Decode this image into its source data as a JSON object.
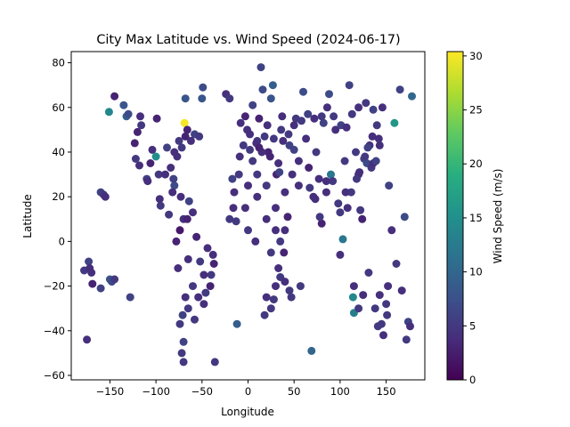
{
  "chart_data": {
    "type": "scatter",
    "title": "City Max Latitude vs. Wind Speed (2024-06-17)",
    "xlabel": "Longitude",
    "ylabel": "Latitude",
    "xlim": [
      -192,
      192
    ],
    "ylim": [
      -62,
      85
    ],
    "xticks": [
      -150,
      -100,
      -50,
      0,
      50,
      100,
      150
    ],
    "yticks": [
      -60,
      -40,
      -20,
      0,
      20,
      40,
      60,
      80
    ],
    "colorbar": {
      "label": "Wind Speed (m/s)",
      "colormap": "viridis",
      "range": [
        0,
        30.4
      ],
      "ticks": [
        0,
        5,
        10,
        15,
        20,
        25,
        30
      ]
    },
    "grid": false,
    "points": [
      [
        -175,
        -44,
        4
      ],
      [
        -178,
        -13,
        5
      ],
      [
        -173,
        -9,
        6
      ],
      [
        -172,
        -12,
        4
      ],
      [
        -169,
        -19,
        3
      ],
      [
        -160,
        22,
        6
      ],
      [
        -157,
        21,
        5
      ],
      [
        -155,
        20,
        4
      ],
      [
        -150,
        -17,
        8
      ],
      [
        -148,
        -18,
        7
      ],
      [
        -160,
        -21,
        6
      ],
      [
        -151,
        58,
        14
      ],
      [
        -145,
        65,
        3
      ],
      [
        -135,
        61,
        8
      ],
      [
        -132,
        56,
        9
      ],
      [
        -130,
        57,
        7
      ],
      [
        -128,
        -25,
        6
      ],
      [
        -120,
        49,
        3
      ],
      [
        -118,
        34,
        4
      ],
      [
        -122,
        37,
        5
      ],
      [
        -117,
        56,
        4
      ],
      [
        -123,
        44,
        3
      ],
      [
        -116,
        52,
        5
      ],
      [
        -110,
        28,
        6
      ],
      [
        -106,
        35,
        3
      ],
      [
        -104,
        41,
        4
      ],
      [
        -100,
        38,
        15
      ],
      [
        -97,
        30,
        5
      ],
      [
        -96,
        19,
        4
      ],
      [
        -99,
        55,
        3
      ],
      [
        -90,
        30,
        4
      ],
      [
        -88,
        42,
        6
      ],
      [
        -86,
        12,
        5
      ],
      [
        -84,
        33,
        4
      ],
      [
        -80,
        25,
        7
      ],
      [
        -80,
        40,
        4
      ],
      [
        -78,
        0,
        3
      ],
      [
        -76,
        -12,
        4
      ],
      [
        -75,
        45,
        5
      ],
      [
        -73,
        20,
        4
      ],
      [
        -74,
        5,
        2
      ],
      [
        -71,
        -33,
        6
      ],
      [
        -70,
        -54,
        5
      ],
      [
        -70,
        10,
        4
      ],
      [
        -69,
        53,
        30
      ],
      [
        -66,
        50,
        3
      ],
      [
        -68,
        64,
        8
      ],
      [
        -65,
        -8,
        4
      ],
      [
        -65,
        -30,
        5
      ],
      [
        -64,
        18,
        6
      ],
      [
        -60,
        13,
        4
      ],
      [
        -58,
        -35,
        5
      ],
      [
        -56,
        2,
        3
      ],
      [
        -54,
        -25,
        4
      ],
      [
        -52,
        -9,
        5
      ],
      [
        -50,
        64,
        8
      ],
      [
        -49,
        69,
        7
      ],
      [
        -48,
        -15,
        4
      ],
      [
        -46,
        -23,
        5
      ],
      [
        -44,
        -3,
        4
      ],
      [
        -41,
        -20,
        3
      ],
      [
        -38,
        -6,
        4
      ],
      [
        -36,
        -54,
        5
      ],
      [
        -37,
        -10,
        3
      ],
      [
        -12,
        -37,
        9
      ],
      [
        -24,
        66,
        4
      ],
      [
        -20,
        64,
        5
      ],
      [
        -17,
        28,
        6
      ],
      [
        -16,
        15,
        4
      ],
      [
        -13,
        9,
        5
      ],
      [
        -8,
        53,
        4
      ],
      [
        -5,
        43,
        5
      ],
      [
        -3,
        56,
        3
      ],
      [
        -1,
        50,
        4
      ],
      [
        0,
        5,
        5
      ],
      [
        2,
        48,
        4
      ],
      [
        5,
        61,
        6
      ],
      [
        8,
        0,
        4
      ],
      [
        10,
        45,
        5
      ],
      [
        12,
        55,
        3
      ],
      [
        14,
        78,
        6
      ],
      [
        16,
        68,
        7
      ],
      [
        18,
        -33,
        5
      ],
      [
        20,
        10,
        4
      ],
      [
        22,
        40,
        3
      ],
      [
        25,
        64,
        8
      ],
      [
        27,
        70,
        9
      ],
      [
        28,
        -26,
        5
      ],
      [
        30,
        15,
        4
      ],
      [
        31,
        30,
        3
      ],
      [
        33,
        -12,
        4
      ],
      [
        36,
        50,
        5
      ],
      [
        37,
        56,
        4
      ],
      [
        39,
        -5,
        3
      ],
      [
        40,
        22,
        4
      ],
      [
        43,
        11,
        3
      ],
      [
        45,
        -22,
        5
      ],
      [
        48,
        30,
        4
      ],
      [
        50,
        41,
        6
      ],
      [
        52,
        55,
        5
      ],
      [
        55,
        25,
        4
      ],
      [
        57,
        -20,
        5
      ],
      [
        60,
        67,
        7
      ],
      [
        63,
        46,
        4
      ],
      [
        66,
        33,
        3
      ],
      [
        69,
        -49,
        10
      ],
      [
        71,
        20,
        4
      ],
      [
        74,
        40,
        5
      ],
      [
        77,
        28,
        4
      ],
      [
        80,
        8,
        3
      ],
      [
        82,
        53,
        6
      ],
      [
        85,
        22,
        4
      ],
      [
        88,
        66,
        7
      ],
      [
        90,
        30,
        12
      ],
      [
        92,
        27,
        5
      ],
      [
        95,
        50,
        4
      ],
      [
        98,
        17,
        5
      ],
      [
        100,
        -6,
        4
      ],
      [
        103,
        1,
        12
      ],
      [
        105,
        36,
        5
      ],
      [
        108,
        15,
        4
      ],
      [
        110,
        70,
        6
      ],
      [
        112,
        22,
        5
      ],
      [
        114,
        -25,
        14
      ],
      [
        115,
        -32,
        13
      ],
      [
        117,
        40,
        5
      ],
      [
        120,
        30,
        4
      ],
      [
        122,
        14,
        5
      ],
      [
        124,
        10,
        3
      ],
      [
        126,
        37,
        6
      ],
      [
        129,
        35,
        7
      ],
      [
        131,
        -14,
        5
      ],
      [
        132,
        43,
        4
      ],
      [
        134,
        33,
        5
      ],
      [
        136,
        35,
        4
      ],
      [
        139,
        36,
        6
      ],
      [
        141,
        -38,
        5
      ],
      [
        143,
        43,
        4
      ],
      [
        145,
        -37,
        5
      ],
      [
        147,
        -42,
        4
      ],
      [
        151,
        -33,
        5
      ],
      [
        153,
        25,
        6
      ],
      [
        156,
        5,
        4
      ],
      [
        159,
        53,
        16
      ],
      [
        161,
        -10,
        5
      ],
      [
        165,
        68,
        6
      ],
      [
        167,
        -22,
        4
      ],
      [
        170,
        11,
        7
      ],
      [
        172,
        -44,
        5
      ],
      [
        174,
        -36,
        6
      ],
      [
        176,
        -38,
        4
      ],
      [
        178,
        65,
        10
      ],
      [
        -170,
        -14,
        4
      ],
      [
        -145,
        -17,
        5
      ],
      [
        -109,
        27,
        4
      ],
      [
        -95,
        16,
        5
      ],
      [
        -81,
        28,
        6
      ],
      [
        -77,
        38,
        4
      ],
      [
        -72,
        42,
        5
      ],
      [
        -68,
        47,
        3
      ],
      [
        -62,
        45,
        4
      ],
      [
        -58,
        48,
        6
      ],
      [
        -53,
        47,
        5
      ],
      [
        -82,
        22,
        4
      ],
      [
        -66,
        10,
        3
      ],
      [
        -3,
        15,
        4
      ],
      [
        5,
        36,
        5
      ],
      [
        15,
        40,
        4
      ],
      [
        24,
        38,
        3
      ],
      [
        33,
        35,
        4
      ],
      [
        45,
        43,
        6
      ],
      [
        55,
        36,
        4
      ],
      [
        67,
        24,
        5
      ],
      [
        73,
        19,
        4
      ],
      [
        78,
        11,
        5
      ],
      [
        85,
        27,
        4
      ],
      [
        100,
        13,
        5
      ],
      [
        106,
        22,
        4
      ],
      [
        118,
        28,
        5
      ],
      [
        121,
        31,
        4
      ],
      [
        127,
        38,
        5
      ],
      [
        130,
        42,
        6
      ],
      [
        135,
        47,
        4
      ],
      [
        140,
        52,
        5
      ],
      [
        146,
        60,
        4
      ],
      [
        -9,
        38,
        4
      ],
      [
        2,
        41,
        5
      ],
      [
        9,
        44,
        4
      ],
      [
        12,
        42,
        3
      ],
      [
        18,
        47,
        5
      ],
      [
        21,
        52,
        4
      ],
      [
        28,
        46,
        5
      ],
      [
        34,
        31,
        6
      ],
      [
        38,
        45,
        4
      ],
      [
        44,
        48,
        5
      ],
      [
        50,
        52,
        4
      ],
      [
        58,
        54,
        5
      ],
      [
        65,
        57,
        6
      ],
      [
        72,
        55,
        4
      ],
      [
        80,
        56,
        5
      ],
      [
        86,
        60,
        4
      ],
      [
        93,
        56,
        5
      ],
      [
        101,
        52,
        6
      ],
      [
        107,
        51,
        4
      ],
      [
        113,
        57,
        5
      ],
      [
        120,
        60,
        4
      ],
      [
        128,
        62,
        5
      ],
      [
        136,
        59,
        6
      ],
      [
        142,
        46,
        4
      ],
      [
        -74,
        -37,
        5
      ],
      [
        -70,
        -45,
        6
      ],
      [
        -72,
        -50,
        5
      ],
      [
        -68,
        -25,
        4
      ],
      [
        -60,
        -20,
        5
      ],
      [
        -48,
        -28,
        4
      ],
      [
        -40,
        -15,
        5
      ],
      [
        20,
        -25,
        4
      ],
      [
        25,
        -30,
        5
      ],
      [
        30,
        -20,
        4
      ],
      [
        35,
        -16,
        5
      ],
      [
        40,
        -18,
        4
      ],
      [
        47,
        -25,
        5
      ],
      [
        115,
        -20,
        4
      ],
      [
        120,
        -30,
        5
      ],
      [
        125,
        -24,
        4
      ],
      [
        138,
        -30,
        5
      ],
      [
        143,
        -24,
        4
      ],
      [
        150,
        -28,
        5
      ],
      [
        152,
        -20,
        4
      ],
      [
        -20,
        10,
        5
      ],
      [
        -15,
        22,
        4
      ],
      [
        -10,
        30,
        5
      ],
      [
        0,
        25,
        4
      ],
      [
        10,
        30,
        5
      ],
      [
        10,
        20,
        4
      ],
      [
        20,
        25,
        5
      ],
      [
        30,
        5,
        4
      ],
      [
        35,
        0,
        5
      ],
      [
        40,
        5,
        4
      ],
      [
        25,
        -5,
        5
      ]
    ]
  }
}
